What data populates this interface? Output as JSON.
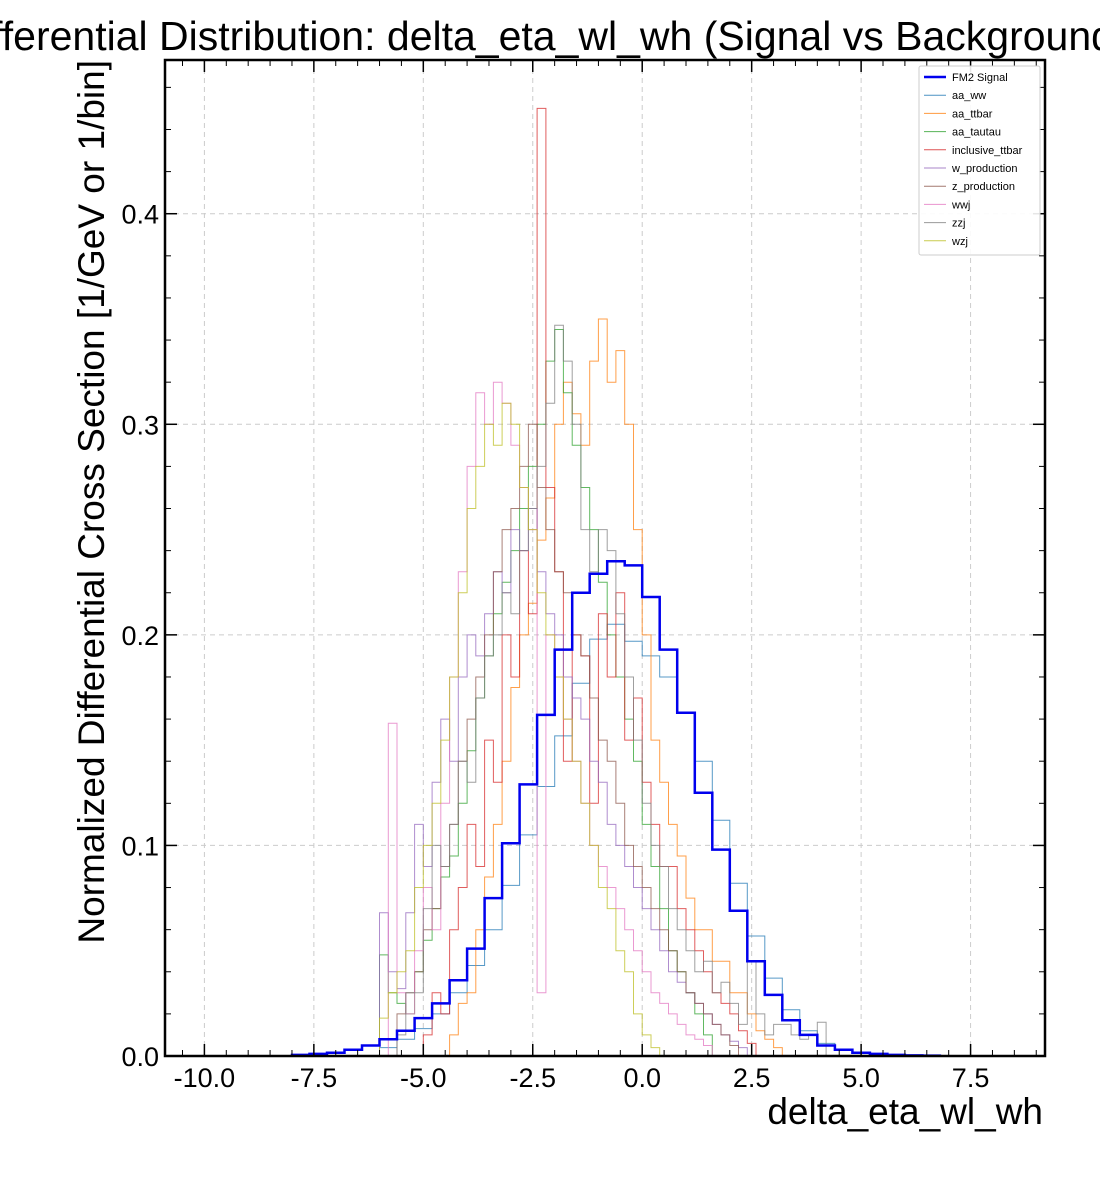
{
  "chart_data": {
    "type": "line",
    "title": "Differential Distribution: delta_eta_wl_wh (Signal vs Background)",
    "xlabel": "delta_eta_wl_wh",
    "ylabel": "Normalized Differential Cross Section [1/GeV or 1/bin]",
    "xlim": [
      -10.9,
      9.2
    ],
    "ylim": [
      0,
      0.473
    ],
    "grid": true,
    "legend_position": "top-right",
    "xticks": [
      -10.0,
      -7.5,
      -5.0,
      -2.5,
      0.0,
      2.5,
      5.0,
      7.5
    ],
    "xtick_labels": [
      "-10.0",
      "-7.5",
      "-5.0",
      "-2.5",
      "0.0",
      "2.5",
      "5.0",
      "7.5"
    ],
    "yticks": [
      0.0,
      0.1,
      0.2,
      0.3,
      0.4
    ],
    "ytick_labels": [
      "0.0",
      "0.1",
      "0.2",
      "0.3",
      "0.4"
    ],
    "series": [
      {
        "name": "FM2 Signal",
        "color": "#0000ee",
        "width": 2.5,
        "edges": [
          -8,
          -7.6,
          -7.2,
          -6.8,
          -6.4,
          -6.0,
          -5.6,
          -5.2,
          -4.8,
          -4.4,
          -4.0,
          -3.6,
          -3.2,
          -2.8,
          -2.4,
          -2.0,
          -1.6,
          -1.2,
          -0.8,
          -0.4,
          0.0,
          0.4,
          0.8,
          1.2,
          1.6,
          2.0,
          2.4,
          2.8,
          3.2,
          3.6,
          4.0,
          4.4,
          4.8,
          5.2,
          5.6,
          6.0,
          6.4,
          6.8
        ],
        "values": [
          0.0005,
          0.001,
          0.0015,
          0.003,
          0.005,
          0.008,
          0.012,
          0.018,
          0.025,
          0.036,
          0.051,
          0.075,
          0.101,
          0.129,
          0.162,
          0.193,
          0.22,
          0.229,
          0.235,
          0.233,
          0.218,
          0.193,
          0.163,
          0.125,
          0.098,
          0.069,
          0.045,
          0.029,
          0.017,
          0.01,
          0.005,
          0.003,
          0.0015,
          0.001,
          0.0005,
          0.0003,
          0.0002
        ]
      },
      {
        "name": "aa_ww",
        "color": "#1f77b4",
        "width": 1,
        "edges": [
          -6.0,
          -5.6,
          -5.2,
          -4.8,
          -4.4,
          -4.0,
          -3.6,
          -3.2,
          -2.8,
          -2.4,
          -2.0,
          -1.6,
          -1.2,
          -0.8,
          -0.4,
          0.0,
          0.4,
          0.8,
          1.2,
          1.6,
          2.0,
          2.4,
          2.8,
          3.2,
          3.6,
          4.0,
          4.4,
          4.8,
          5.2
        ],
        "values": [
          0.004,
          0.008,
          0.013,
          0.02,
          0.03,
          0.043,
          0.06,
          0.081,
          0.105,
          0.128,
          0.152,
          0.177,
          0.198,
          0.205,
          0.197,
          0.19,
          0.18,
          0.163,
          0.14,
          0.112,
          0.082,
          0.057,
          0.037,
          0.022,
          0.012,
          0.006,
          0.003,
          0.0015
        ]
      },
      {
        "name": "aa_ttbar",
        "color": "#ff7f0e",
        "width": 1,
        "edges": [
          -4.4,
          -4.2,
          -4.0,
          -3.8,
          -3.6,
          -3.4,
          -3.2,
          -3.0,
          -2.8,
          -2.6,
          -2.4,
          -2.2,
          -2.0,
          -1.8,
          -1.6,
          -1.4,
          -1.2,
          -1.0,
          -0.8,
          -0.6,
          -0.4,
          -0.2,
          0.0,
          0.2,
          0.4,
          0.6,
          0.8,
          1.0,
          1.2,
          1.4,
          1.6,
          1.8,
          2.0,
          2.2,
          2.4,
          2.6,
          2.8,
          3.0,
          3.2
        ],
        "values": [
          0.01,
          0.025,
          0.03,
          0.06,
          0.085,
          0.11,
          0.14,
          0.175,
          0.2,
          0.215,
          0.245,
          0.265,
          0.3,
          0.32,
          0.305,
          0.29,
          0.33,
          0.35,
          0.32,
          0.335,
          0.3,
          0.25,
          0.2,
          0.15,
          0.13,
          0.11,
          0.095,
          0.075,
          0.06,
          0.06,
          0.045,
          0.045,
          0.03,
          0.03,
          0.02,
          0.012,
          0.008,
          0.004
        ]
      },
      {
        "name": "aa_tautau",
        "color": "#2ca02c",
        "width": 1,
        "edges": [
          -6.0,
          -5.8,
          -5.6,
          -5.4,
          -5.2,
          -5.0,
          -4.8,
          -4.6,
          -4.4,
          -4.2,
          -4.0,
          -3.8,
          -3.6,
          -3.4,
          -3.2,
          -3.0,
          -2.8,
          -2.6,
          -2.4,
          -2.2,
          -2.0,
          -1.8,
          -1.6,
          -1.4,
          -1.2,
          -1.0,
          -0.8,
          -0.6,
          -0.4,
          -0.2,
          0.0,
          0.2,
          0.4,
          0.6,
          0.8,
          1.0,
          1.2,
          1.4,
          1.6
        ],
        "values": [
          0.048,
          0.03,
          0.025,
          0.02,
          0.04,
          0.055,
          0.07,
          0.085,
          0.095,
          0.12,
          0.145,
          0.17,
          0.19,
          0.21,
          0.225,
          0.24,
          0.26,
          0.28,
          0.3,
          0.33,
          0.345,
          0.315,
          0.29,
          0.27,
          0.25,
          0.225,
          0.2,
          0.18,
          0.16,
          0.14,
          0.11,
          0.09,
          0.07,
          0.05,
          0.04,
          0.03,
          0.02,
          0.01
        ]
      },
      {
        "name": "inclusive_ttbar",
        "color": "#d62728",
        "width": 1,
        "edges": [
          -5.0,
          -4.8,
          -4.6,
          -4.4,
          -4.2,
          -4.0,
          -3.8,
          -3.6,
          -3.4,
          -3.2,
          -3.0,
          -2.8,
          -2.6,
          -2.4,
          -2.2,
          -2.0,
          -1.8,
          -1.6,
          -1.4,
          -1.2,
          -1.0,
          -0.8,
          -0.6,
          -0.4,
          -0.2,
          0.0,
          0.2,
          0.4,
          0.6,
          0.8,
          1.0,
          1.2,
          1.4,
          1.6,
          1.8,
          2.0,
          2.2,
          2.4,
          2.6
        ],
        "values": [
          0.01,
          0.03,
          0.02,
          0.06,
          0.08,
          0.11,
          0.09,
          0.15,
          0.13,
          0.2,
          0.18,
          0.24,
          0.21,
          0.45,
          0.27,
          0.23,
          0.14,
          0.2,
          0.19,
          0.12,
          0.21,
          0.18,
          0.22,
          0.15,
          0.17,
          0.13,
          0.11,
          0.09,
          0.09,
          0.07,
          0.06,
          0.05,
          0.04,
          0.03,
          0.025,
          0.02,
          0.012,
          0.006
        ]
      },
      {
        "name": "w_production",
        "color": "#9467bd",
        "width": 1,
        "edges": [
          -6.0,
          -5.8,
          -5.6,
          -5.4,
          -5.2,
          -5.0,
          -4.8,
          -4.6,
          -4.4,
          -4.2,
          -4.0,
          -3.8,
          -3.6,
          -3.4,
          -3.2,
          -3.0,
          -2.8,
          -2.6,
          -2.4,
          -2.2,
          -2.0,
          -1.8,
          -1.6,
          -1.4,
          -1.2,
          -1.0,
          -0.8,
          -0.6,
          -0.4,
          -0.2,
          0.0,
          0.2,
          0.4,
          0.6,
          0.8,
          1.0,
          1.2,
          1.4,
          1.6,
          1.8,
          2.0,
          2.2,
          2.4
        ],
        "values": [
          0.068,
          0.04,
          0.032,
          0.068,
          0.11,
          0.09,
          0.13,
          0.16,
          0.14,
          0.18,
          0.2,
          0.19,
          0.21,
          0.23,
          0.22,
          0.25,
          0.24,
          0.26,
          0.23,
          0.21,
          0.2,
          0.18,
          0.17,
          0.16,
          0.14,
          0.13,
          0.11,
          0.1,
          0.09,
          0.08,
          0.07,
          0.06,
          0.05,
          0.04,
          0.035,
          0.03,
          0.025,
          0.02,
          0.015,
          0.01,
          0.007,
          0.004
        ]
      },
      {
        "name": "z_production",
        "color": "#8c564b",
        "width": 1,
        "edges": [
          -5.6,
          -5.4,
          -5.2,
          -5.0,
          -4.8,
          -4.6,
          -4.4,
          -4.2,
          -4.0,
          -3.8,
          -3.6,
          -3.4,
          -3.2,
          -3.0,
          -2.8,
          -2.6,
          -2.4,
          -2.2,
          -2.0,
          -1.8,
          -1.6,
          -1.4,
          -1.2,
          -1.0,
          -0.8,
          -0.6,
          -0.4,
          -0.2,
          0.0,
          0.2,
          0.4,
          0.6,
          0.8,
          1.0,
          1.2,
          1.4,
          1.6,
          1.8,
          2.0,
          2.2
        ],
        "values": [
          0.02,
          0.03,
          0.04,
          0.06,
          0.07,
          0.09,
          0.11,
          0.14,
          0.16,
          0.18,
          0.2,
          0.23,
          0.25,
          0.26,
          0.28,
          0.3,
          0.27,
          0.25,
          0.23,
          0.22,
          0.2,
          0.19,
          0.17,
          0.15,
          0.14,
          0.12,
          0.1,
          0.09,
          0.08,
          0.07,
          0.06,
          0.05,
          0.04,
          0.03,
          0.025,
          0.02,
          0.015,
          0.01,
          0.005
        ]
      },
      {
        "name": "wwj",
        "color": "#e377c2",
        "width": 1,
        "edges": [
          -5.8,
          -5.6,
          -5.4,
          -5.2,
          -5.0,
          -4.8,
          -4.6,
          -4.4,
          -4.2,
          -4.0,
          -3.8,
          -3.6,
          -3.4,
          -3.2,
          -3.0,
          -2.8,
          -2.6,
          -2.4,
          -2.2,
          -2.0,
          -1.8,
          -1.6,
          -1.4,
          -1.2,
          -1.0,
          -0.8,
          -0.6,
          -0.4,
          -0.2,
          0.0,
          0.2,
          0.4,
          0.6,
          0.8,
          1.0,
          1.2,
          1.4,
          1.6
        ],
        "values": [
          0.158,
          0.03,
          0.02,
          0.05,
          0.08,
          0.06,
          0.12,
          0.18,
          0.23,
          0.28,
          0.315,
          0.3,
          0.32,
          0.31,
          0.29,
          0.27,
          0.25,
          0.03,
          0.2,
          0.18,
          0.16,
          0.14,
          0.12,
          0.1,
          0.09,
          0.08,
          0.07,
          0.06,
          0.05,
          0.04,
          0.03,
          0.025,
          0.02,
          0.015,
          0.01,
          0.008,
          0.005
        ]
      },
      {
        "name": "zzj",
        "color": "#7f7f7f",
        "width": 1,
        "edges": [
          -5.6,
          -5.4,
          -5.2,
          -5.0,
          -4.8,
          -4.6,
          -4.4,
          -4.2,
          -4.0,
          -3.8,
          -3.6,
          -3.4,
          -3.2,
          -3.0,
          -2.8,
          -2.6,
          -2.4,
          -2.2,
          -2.0,
          -1.8,
          -1.6,
          -1.4,
          -1.2,
          -1.0,
          -0.8,
          -0.6,
          -0.4,
          -0.2,
          0.0,
          0.2,
          0.4,
          0.6,
          0.8,
          1.0,
          1.2,
          1.4,
          1.6,
          1.8,
          2.0,
          2.2,
          2.4,
          2.6,
          2.8,
          3.0,
          3.2,
          3.4,
          3.6,
          3.8,
          4.0,
          4.2
        ],
        "values": [
          0.01,
          0.03,
          0.03,
          0.07,
          0.1,
          0.09,
          0.11,
          0.14,
          0.13,
          0.17,
          0.19,
          0.2,
          0.22,
          0.21,
          0.24,
          0.26,
          0.28,
          0.31,
          0.347,
          0.33,
          0.3,
          0.25,
          0.23,
          0.25,
          0.24,
          0.21,
          0.18,
          0.15,
          0.12,
          0.1,
          0.09,
          0.07,
          0.06,
          0.05,
          0.04,
          0.045,
          0.03,
          0.035,
          0.025,
          0.015,
          0.045,
          0.02,
          0.01,
          0.015,
          0.015,
          0.01,
          0.008,
          0.01,
          0.016
        ]
      },
      {
        "name": "wzj",
        "color": "#bcbd22",
        "width": 1,
        "edges": [
          -6.0,
          -5.8,
          -5.6,
          -5.4,
          -5.2,
          -5.0,
          -4.8,
          -4.6,
          -4.4,
          -4.2,
          -4.0,
          -3.8,
          -3.6,
          -3.4,
          -3.2,
          -3.0,
          -2.8,
          -2.6,
          -2.4,
          -2.2,
          -2.0,
          -1.8,
          -1.6,
          -1.4,
          -1.2,
          -1.0,
          -0.8,
          -0.6,
          -0.4,
          -0.2,
          0.0,
          0.2,
          0.4
        ],
        "values": [
          0.018,
          0.03,
          0.04,
          0.05,
          0.08,
          0.1,
          0.12,
          0.15,
          0.18,
          0.22,
          0.26,
          0.28,
          0.3,
          0.29,
          0.31,
          0.3,
          0.27,
          0.25,
          0.22,
          0.2,
          0.18,
          0.16,
          0.14,
          0.12,
          0.1,
          0.08,
          0.07,
          0.05,
          0.04,
          0.02,
          0.01,
          0.004
        ]
      }
    ]
  }
}
